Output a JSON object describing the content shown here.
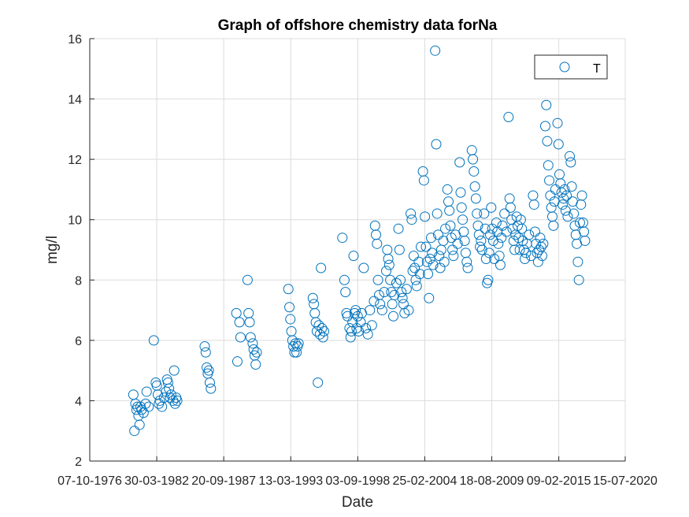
{
  "chart_data": {
    "type": "scatter",
    "title": "Graph of offshore chemistry data forNa",
    "xlabel": "Date",
    "ylabel": "mg/l",
    "x_is_date": true,
    "xlim": [
      "1976-10-07",
      "2020-07-15"
    ],
    "xticks": [
      "1976-10-07",
      "1982-03-30",
      "1987-09-20",
      "1993-03-13",
      "1998-09-03",
      "2004-02-25",
      "2009-08-18",
      "2015-02-09",
      "2020-07-15"
    ],
    "xtick_labels": [
      "07-10-1976",
      "30-03-1982",
      "20-09-1987",
      "13-03-1993",
      "03-09-1998",
      "25-02-2004",
      "18-08-2009",
      "09-02-2015",
      "15-07-2020"
    ],
    "ylim": [
      2,
      16
    ],
    "yticks": [
      2,
      4,
      6,
      8,
      10,
      12,
      14,
      16
    ],
    "grid": true,
    "legend_position": "top-right",
    "marker_color": "#0072BD",
    "series": [
      {
        "name": "T",
        "marker": "circle",
        "points": [
          [
            "1980-05-01",
            4.2
          ],
          [
            "1980-06-01",
            3.0
          ],
          [
            "1980-07-01",
            3.9
          ],
          [
            "1980-08-01",
            3.7
          ],
          [
            "1980-09-01",
            3.8
          ],
          [
            "1980-10-01",
            3.5
          ],
          [
            "1980-11-01",
            3.2
          ],
          [
            "1980-12-01",
            3.8
          ],
          [
            "1981-01-01",
            3.7
          ],
          [
            "1981-03-01",
            3.6
          ],
          [
            "1981-05-01",
            3.9
          ],
          [
            "1981-06-01",
            4.3
          ],
          [
            "1981-08-01",
            3.8
          ],
          [
            "1982-01-01",
            6.0
          ],
          [
            "1982-03-01",
            4.6
          ],
          [
            "1982-04-01",
            4.5
          ],
          [
            "1982-05-01",
            4.2
          ],
          [
            "1982-06-01",
            3.9
          ],
          [
            "1982-07-01",
            4.0
          ],
          [
            "1982-09-01",
            3.8
          ],
          [
            "1982-11-01",
            4.1
          ],
          [
            "1983-01-01",
            4.3
          ],
          [
            "1983-02-01",
            4.7
          ],
          [
            "1983-03-01",
            4.6
          ],
          [
            "1983-04-01",
            4.4
          ],
          [
            "1983-05-01",
            4.1
          ],
          [
            "1983-06-01",
            4.2
          ],
          [
            "1983-08-01",
            4.0
          ],
          [
            "1983-09-01",
            5.0
          ],
          [
            "1983-10-01",
            3.9
          ],
          [
            "1983-11-01",
            4.1
          ],
          [
            "1983-12-01",
            4.0
          ],
          [
            "1986-03-01",
            5.8
          ],
          [
            "1986-04-01",
            5.6
          ],
          [
            "1986-05-01",
            5.1
          ],
          [
            "1986-06-01",
            4.9
          ],
          [
            "1986-07-01",
            5.0
          ],
          [
            "1986-08-01",
            4.6
          ],
          [
            "1986-09-01",
            4.4
          ],
          [
            "1988-10-01",
            6.9
          ],
          [
            "1988-11-01",
            5.3
          ],
          [
            "1989-01-01",
            6.6
          ],
          [
            "1989-02-01",
            6.1
          ],
          [
            "1989-09-01",
            8.0
          ],
          [
            "1989-10-01",
            6.9
          ],
          [
            "1989-11-01",
            6.6
          ],
          [
            "1989-12-01",
            6.1
          ],
          [
            "1990-02-01",
            5.9
          ],
          [
            "1990-03-01",
            5.7
          ],
          [
            "1990-04-01",
            5.5
          ],
          [
            "1990-05-01",
            5.2
          ],
          [
            "1990-06-01",
            5.6
          ],
          [
            "1993-01-01",
            7.7
          ],
          [
            "1993-02-01",
            7.1
          ],
          [
            "1993-03-01",
            6.7
          ],
          [
            "1993-04-01",
            6.3
          ],
          [
            "1993-05-01",
            6.0
          ],
          [
            "1993-06-01",
            5.8
          ],
          [
            "1993-07-01",
            5.6
          ],
          [
            "1993-08-01",
            5.9
          ],
          [
            "1993-09-01",
            5.6
          ],
          [
            "1993-10-01",
            5.8
          ],
          [
            "1993-11-01",
            5.9
          ],
          [
            "1995-01-01",
            7.4
          ],
          [
            "1995-02-01",
            7.2
          ],
          [
            "1995-03-01",
            6.9
          ],
          [
            "1995-04-01",
            6.6
          ],
          [
            "1995-05-01",
            6.3
          ],
          [
            "1995-06-01",
            4.6
          ],
          [
            "1995-07-01",
            6.5
          ],
          [
            "1995-08-01",
            6.2
          ],
          [
            "1995-09-01",
            8.4
          ],
          [
            "1995-10-01",
            6.4
          ],
          [
            "1995-11-01",
            6.1
          ],
          [
            "1995-12-01",
            6.3
          ],
          [
            "1997-06-01",
            9.4
          ],
          [
            "1997-08-01",
            8.0
          ],
          [
            "1997-09-01",
            7.6
          ],
          [
            "1997-10-01",
            6.9
          ],
          [
            "1997-11-01",
            6.8
          ],
          [
            "1998-01-01",
            6.4
          ],
          [
            "1998-02-01",
            6.1
          ],
          [
            "1998-03-01",
            6.3
          ],
          [
            "1998-04-01",
            6.6
          ],
          [
            "1998-05-01",
            8.8
          ],
          [
            "1998-06-01",
            6.9
          ],
          [
            "1998-07-01",
            7.0
          ],
          [
            "1998-08-01",
            6.4
          ],
          [
            "1998-09-01",
            6.8
          ],
          [
            "1998-10-01",
            6.3
          ],
          [
            "1998-12-01",
            6.6
          ],
          [
            "1999-01-01",
            6.9
          ],
          [
            "1999-03-01",
            8.4
          ],
          [
            "1999-05-01",
            6.4
          ],
          [
            "1999-07-01",
            6.2
          ],
          [
            "1999-09-01",
            7.0
          ],
          [
            "1999-11-01",
            6.5
          ],
          [
            "2000-01-01",
            7.3
          ],
          [
            "2000-02-01",
            9.8
          ],
          [
            "2000-03-01",
            9.5
          ],
          [
            "2000-04-01",
            9.2
          ],
          [
            "2000-05-01",
            8.0
          ],
          [
            "2000-06-01",
            7.5
          ],
          [
            "2000-07-01",
            7.2
          ],
          [
            "2000-09-01",
            7.0
          ],
          [
            "2000-11-01",
            7.6
          ],
          [
            "2001-01-01",
            8.3
          ],
          [
            "2001-02-01",
            9.0
          ],
          [
            "2001-03-01",
            8.7
          ],
          [
            "2001-04-01",
            8.5
          ],
          [
            "2001-05-01",
            8.0
          ],
          [
            "2001-06-01",
            7.6
          ],
          [
            "2001-07-01",
            7.2
          ],
          [
            "2001-08-01",
            6.8
          ],
          [
            "2001-09-01",
            7.5
          ],
          [
            "2001-11-01",
            7.9
          ],
          [
            "2002-01-01",
            9.7
          ],
          [
            "2002-02-01",
            9.0
          ],
          [
            "2002-03-01",
            8.0
          ],
          [
            "2002-04-01",
            7.6
          ],
          [
            "2002-05-01",
            7.4
          ],
          [
            "2002-06-01",
            7.2
          ],
          [
            "2002-07-01",
            6.9
          ],
          [
            "2002-09-01",
            7.7
          ],
          [
            "2002-11-01",
            7.0
          ],
          [
            "2003-01-01",
            10.2
          ],
          [
            "2003-02-01",
            10.0
          ],
          [
            "2003-03-01",
            8.3
          ],
          [
            "2003-04-01",
            8.8
          ],
          [
            "2003-05-01",
            8.4
          ],
          [
            "2003-06-01",
            8.0
          ],
          [
            "2003-07-01",
            7.8
          ],
          [
            "2003-09-01",
            8.6
          ],
          [
            "2003-10-01",
            8.2
          ],
          [
            "2003-11-01",
            9.1
          ],
          [
            "2004-01-01",
            11.6
          ],
          [
            "2004-02-01",
            11.3
          ],
          [
            "2004-03-01",
            10.1
          ],
          [
            "2004-04-01",
            9.1
          ],
          [
            "2004-05-01",
            8.6
          ],
          [
            "2004-06-01",
            8.2
          ],
          [
            "2004-07-01",
            7.4
          ],
          [
            "2004-08-01",
            8.7
          ],
          [
            "2004-09-01",
            9.4
          ],
          [
            "2004-10-01",
            8.9
          ],
          [
            "2004-11-01",
            8.5
          ],
          [
            "2005-01-01",
            15.6
          ],
          [
            "2005-02-01",
            12.5
          ],
          [
            "2005-03-01",
            10.2
          ],
          [
            "2005-04-01",
            9.5
          ],
          [
            "2005-05-01",
            8.8
          ],
          [
            "2005-06-01",
            8.4
          ],
          [
            "2005-07-01",
            9.0
          ],
          [
            "2005-09-01",
            9.3
          ],
          [
            "2005-10-01",
            8.6
          ],
          [
            "2005-11-01",
            9.7
          ],
          [
            "2006-01-01",
            11.0
          ],
          [
            "2006-02-01",
            10.6
          ],
          [
            "2006-03-01",
            10.3
          ],
          [
            "2006-04-01",
            9.8
          ],
          [
            "2006-05-01",
            9.4
          ],
          [
            "2006-06-01",
            9.0
          ],
          [
            "2006-07-01",
            8.8
          ],
          [
            "2006-09-01",
            9.5
          ],
          [
            "2006-11-01",
            9.2
          ],
          [
            "2007-01-01",
            11.9
          ],
          [
            "2007-02-01",
            10.9
          ],
          [
            "2007-03-01",
            10.4
          ],
          [
            "2007-04-01",
            10.0
          ],
          [
            "2007-05-01",
            9.6
          ],
          [
            "2007-06-01",
            9.3
          ],
          [
            "2007-07-01",
            8.9
          ],
          [
            "2007-08-01",
            8.6
          ],
          [
            "2007-09-01",
            8.4
          ],
          [
            "2008-01-01",
            12.3
          ],
          [
            "2008-02-01",
            12.0
          ],
          [
            "2008-03-01",
            11.6
          ],
          [
            "2008-04-01",
            11.1
          ],
          [
            "2008-05-01",
            10.7
          ],
          [
            "2008-06-01",
            10.2
          ],
          [
            "2008-07-01",
            9.8
          ],
          [
            "2008-08-01",
            9.5
          ],
          [
            "2008-09-01",
            9.1
          ],
          [
            "2008-10-01",
            9.3
          ],
          [
            "2008-11-01",
            9.0
          ],
          [
            "2009-01-01",
            10.2
          ],
          [
            "2009-02-01",
            9.7
          ],
          [
            "2009-03-01",
            8.7
          ],
          [
            "2009-04-01",
            7.9
          ],
          [
            "2009-05-01",
            8.0
          ],
          [
            "2009-06-01",
            8.9
          ],
          [
            "2009-07-01",
            9.5
          ],
          [
            "2009-08-01",
            10.4
          ],
          [
            "2009-09-01",
            9.7
          ],
          [
            "2009-10-01",
            9.3
          ],
          [
            "2009-11-01",
            8.7
          ],
          [
            "2010-01-01",
            9.9
          ],
          [
            "2010-02-01",
            9.6
          ],
          [
            "2010-03-01",
            9.2
          ],
          [
            "2010-04-01",
            8.8
          ],
          [
            "2010-05-01",
            8.5
          ],
          [
            "2010-06-01",
            9.4
          ],
          [
            "2010-07-01",
            9.8
          ],
          [
            "2010-09-01",
            10.2
          ],
          [
            "2010-11-01",
            9.6
          ],
          [
            "2011-01-01",
            13.4
          ],
          [
            "2011-02-01",
            10.7
          ],
          [
            "2011-03-01",
            10.4
          ],
          [
            "2011-04-01",
            10.0
          ],
          [
            "2011-05-01",
            9.7
          ],
          [
            "2011-06-01",
            9.3
          ],
          [
            "2011-07-01",
            9.0
          ],
          [
            "2011-08-01",
            9.5
          ],
          [
            "2011-09-01",
            10.1
          ],
          [
            "2011-10-01",
            9.8
          ],
          [
            "2011-11-01",
            9.4
          ],
          [
            "2011-12-01",
            9.0
          ],
          [
            "2012-01-01",
            10.0
          ],
          [
            "2012-02-01",
            9.7
          ],
          [
            "2012-03-01",
            9.3
          ],
          [
            "2012-04-01",
            9.0
          ],
          [
            "2012-05-01",
            8.7
          ],
          [
            "2012-06-01",
            8.9
          ],
          [
            "2012-07-01",
            9.2
          ],
          [
            "2012-09-01",
            9.5
          ],
          [
            "2012-11-01",
            8.8
          ],
          [
            "2013-01-01",
            10.8
          ],
          [
            "2013-02-01",
            10.5
          ],
          [
            "2013-03-01",
            9.6
          ],
          [
            "2013-04-01",
            9.2
          ],
          [
            "2013-05-01",
            8.9
          ],
          [
            "2013-06-01",
            8.6
          ],
          [
            "2013-07-01",
            9.0
          ],
          [
            "2013-08-01",
            9.4
          ],
          [
            "2013-09-01",
            9.1
          ],
          [
            "2013-10-01",
            8.8
          ],
          [
            "2013-11-01",
            9.2
          ],
          [
            "2014-01-01",
            13.1
          ],
          [
            "2014-02-01",
            13.8
          ],
          [
            "2014-03-01",
            12.6
          ],
          [
            "2014-04-01",
            11.8
          ],
          [
            "2014-05-01",
            11.3
          ],
          [
            "2014-06-01",
            10.8
          ],
          [
            "2014-07-01",
            10.4
          ],
          [
            "2014-08-01",
            10.1
          ],
          [
            "2014-09-01",
            9.8
          ],
          [
            "2014-10-01",
            10.6
          ],
          [
            "2014-11-01",
            11.0
          ],
          [
            "2015-01-01",
            13.2
          ],
          [
            "2015-02-01",
            12.5
          ],
          [
            "2015-03-01",
            11.5
          ],
          [
            "2015-04-01",
            11.2
          ],
          [
            "2015-05-01",
            10.9
          ],
          [
            "2015-06-01",
            10.5
          ],
          [
            "2015-07-01",
            10.7
          ],
          [
            "2015-08-01",
            11.0
          ],
          [
            "2015-09-01",
            10.3
          ],
          [
            "2015-10-01",
            10.8
          ],
          [
            "2015-11-01",
            10.1
          ],
          [
            "2016-01-01",
            12.1
          ],
          [
            "2016-02-01",
            11.9
          ],
          [
            "2016-03-01",
            11.1
          ],
          [
            "2016-04-01",
            10.6
          ],
          [
            "2016-05-01",
            10.2
          ],
          [
            "2016-06-01",
            9.8
          ],
          [
            "2016-07-01",
            9.5
          ],
          [
            "2016-08-01",
            9.2
          ],
          [
            "2016-09-01",
            8.6
          ],
          [
            "2016-10-01",
            8.0
          ],
          [
            "2016-11-01",
            9.9
          ],
          [
            "2016-12-01",
            10.5
          ],
          [
            "2017-01-01",
            10.8
          ],
          [
            "2017-02-01",
            9.9
          ],
          [
            "2017-03-01",
            9.6
          ],
          [
            "2017-04-01",
            9.3
          ]
        ]
      }
    ],
    "legend": {
      "entries": [
        "T"
      ]
    }
  }
}
